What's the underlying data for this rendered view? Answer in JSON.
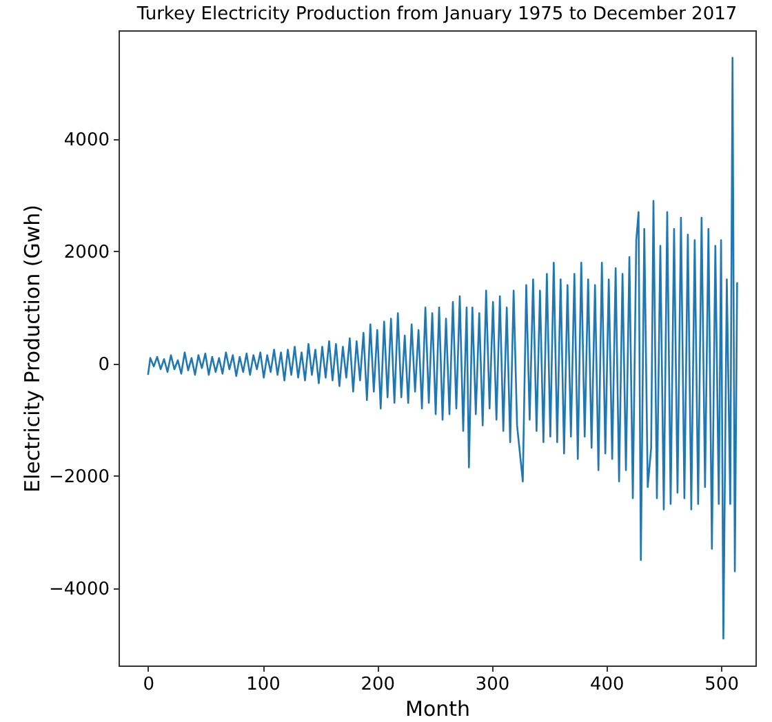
{
  "chart_data": {
    "type": "line",
    "title": "Turkey Electricity Production from January 1975 to December 2017",
    "xlabel": "Month",
    "ylabel": "Electricity Production (Gwh)",
    "xlim": [
      -25.7,
      530
    ],
    "xticks": [
      0,
      100,
      200,
      300,
      400,
      500
    ],
    "ylim": [
      -5380,
      5940
    ],
    "yticks": [
      -4000,
      -2000,
      0,
      2000,
      4000
    ],
    "grid": false,
    "x": [
      0,
      2,
      5,
      8,
      11,
      14,
      17,
      20,
      23,
      26,
      29,
      32,
      35,
      38,
      41,
      44,
      47,
      50,
      53,
      56,
      59,
      62,
      65,
      68,
      71,
      74,
      77,
      80,
      83,
      86,
      89,
      92,
      95,
      98,
      101,
      104,
      107,
      110,
      113,
      116,
      119,
      122,
      125,
      128,
      131,
      134,
      137,
      140,
      143,
      146,
      149,
      152,
      155,
      158,
      161,
      164,
      167,
      170,
      173,
      176,
      179,
      182,
      185,
      188,
      191,
      194,
      197,
      200,
      203,
      206,
      209,
      212,
      215,
      218,
      221,
      224,
      227,
      230,
      233,
      236,
      239,
      242,
      245,
      248,
      251,
      254,
      257,
      260,
      263,
      266,
      269,
      272,
      275,
      278,
      280,
      283,
      286,
      289,
      292,
      295,
      298,
      301,
      304,
      307,
      310,
      313,
      316,
      319,
      322,
      327,
      330,
      333,
      336,
      339,
      342,
      345,
      348,
      351,
      354,
      357,
      360,
      363,
      366,
      369,
      372,
      375,
      378,
      381,
      384,
      387,
      390,
      393,
      396,
      399,
      402,
      405,
      408,
      411,
      414,
      417,
      420,
      423,
      426,
      428,
      430,
      433,
      436,
      439,
      441,
      444,
      447,
      450,
      453,
      456,
      459,
      462,
      465,
      468,
      471,
      474,
      477,
      480,
      483,
      486,
      489,
      492,
      495,
      498,
      500,
      502,
      505,
      508,
      510,
      512,
      514
    ],
    "series": [
      {
        "color": "#1f77b4",
        "values": [
          -200,
          100,
          -50,
          120,
          -100,
          80,
          -150,
          150,
          -100,
          60,
          -180,
          200,
          -120,
          100,
          -200,
          150,
          -80,
          180,
          -200,
          120,
          -150,
          100,
          -180,
          200,
          -100,
          150,
          -220,
          120,
          -150,
          180,
          -200,
          150,
          -100,
          200,
          -250,
          150,
          -150,
          250,
          -200,
          200,
          -300,
          250,
          -200,
          300,
          -250,
          200,
          -300,
          350,
          -200,
          250,
          -350,
          300,
          -250,
          400,
          -300,
          350,
          -400,
          300,
          -250,
          450,
          -500,
          400,
          -300,
          550,
          -650,
          700,
          -500,
          600,
          -800,
          750,
          -600,
          800,
          -700,
          900,
          -600,
          500,
          -700,
          700,
          -500,
          600,
          -800,
          1000,
          -700,
          900,
          -900,
          1000,
          -1000,
          800,
          -900,
          1100,
          -800,
          1200,
          -1200,
          1000,
          -1850,
          1000,
          -900,
          900,
          -1100,
          1300,
          -800,
          1100,
          -1000,
          1200,
          -1200,
          1000,
          -1400,
          1300,
          -1100,
          -2100,
          1400,
          -1000,
          1500,
          -1200,
          1300,
          -1400,
          1600,
          -1300,
          1800,
          -1400,
          1500,
          -1600,
          1400,
          -1300,
          1600,
          -1700,
          1800,
          -1300,
          1500,
          -1500,
          1400,
          -1900,
          1800,
          -1600,
          1500,
          -1700,
          1700,
          -2100,
          1600,
          -1900,
          1900,
          -2400,
          2200,
          2700,
          -3500,
          2400,
          -2200,
          -1500,
          2900,
          -2400,
          2100,
          -2600,
          2700,
          -2500,
          2400,
          -2300,
          2600,
          -2400,
          2300,
          -2600,
          2200,
          -2500,
          2600,
          -2200,
          2400,
          -3300,
          2100,
          -2500,
          2200,
          -4900,
          1500,
          -2500,
          5450,
          -3700,
          1450
        ]
      }
    ]
  }
}
